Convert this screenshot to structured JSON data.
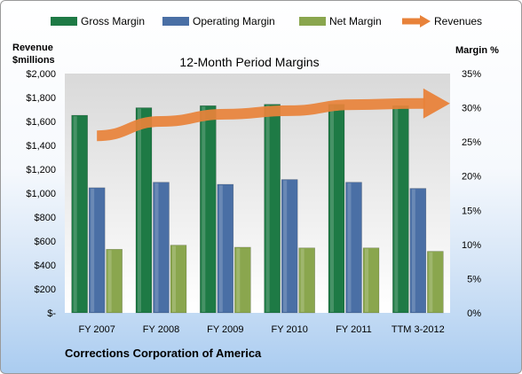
{
  "colors": {
    "gross_margin": "#1e7a45",
    "operating_margin": "#4a6fa5",
    "net_margin": "#8aa64e",
    "revenues": "#e8823a",
    "plot_top": "#d9d9d9",
    "plot_bottom": "#ffffff"
  },
  "chart_data": {
    "type": "bar",
    "title": "12-Month Period Margins",
    "company": "Corrections Corporation of America",
    "left_axis": {
      "label_line1": "Revenue",
      "label_line2": "$millions",
      "ylim": [
        0,
        2000
      ],
      "ticks": [
        "$-",
        "$200",
        "$400",
        "$600",
        "$800",
        "$1,000",
        "$1,200",
        "$1,400",
        "$1,600",
        "$1,800",
        "$2,000"
      ]
    },
    "right_axis": {
      "label": "Margin %",
      "ylim": [
        0,
        35
      ],
      "ticks": [
        "0%",
        "5%",
        "10%",
        "15%",
        "20%",
        "25%",
        "30%",
        "35%"
      ]
    },
    "categories": [
      "FY 2007",
      "FY 2008",
      "FY 2009",
      "FY 2010",
      "FY 2011",
      "TTM 3-2012"
    ],
    "series": [
      {
        "name": "Gross Margin",
        "type": "bar",
        "axis": "right",
        "color_key": "gross_margin",
        "values": [
          28.9,
          30.0,
          30.3,
          30.5,
          30.5,
          30.3
        ]
      },
      {
        "name": "Operating Margin",
        "type": "bar",
        "axis": "right",
        "color_key": "operating_margin",
        "values": [
          18.3,
          19.1,
          18.8,
          19.5,
          19.1,
          18.2
        ]
      },
      {
        "name": "Net Margin",
        "type": "bar",
        "axis": "right",
        "color_key": "net_margin",
        "values": [
          9.3,
          9.9,
          9.6,
          9.5,
          9.5,
          9.0
        ]
      },
      {
        "name": "Revenues",
        "type": "arrow-line",
        "axis": "left",
        "color_key": "revenues",
        "values": [
          1480,
          1600,
          1660,
          1690,
          1740,
          1750
        ]
      }
    ],
    "legend_position": "top",
    "grid": false
  }
}
